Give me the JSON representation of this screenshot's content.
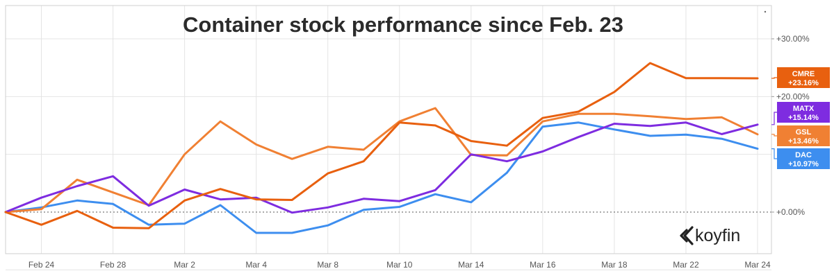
{
  "chart_data": {
    "type": "line",
    "title": "Container stock performance since Feb. 23",
    "brand": "koyfin",
    "x": [
      "Feb 23",
      "Feb 24",
      "Feb 25",
      "Feb 28",
      "Mar 1",
      "Mar 2",
      "Mar 3",
      "Mar 4",
      "Mar 7",
      "Mar 8",
      "Mar 9",
      "Mar 10",
      "Mar 11",
      "Mar 14",
      "Mar 15",
      "Mar 16",
      "Mar 17",
      "Mar 18",
      "Mar 21",
      "Mar 22",
      "Mar 23",
      "Mar 24"
    ],
    "x_tick_labels": [
      "Feb 24",
      "Feb 28",
      "Mar 2",
      "Mar 4",
      "Mar 8",
      "Mar 10",
      "Mar 14",
      "Mar 16",
      "Mar 18",
      "Mar 22",
      "Mar 24"
    ],
    "x_tick_index": [
      1,
      3,
      5,
      7,
      9,
      11,
      13,
      15,
      17,
      19,
      21
    ],
    "y_ticks": [
      {
        "value": 0,
        "label": "+0.00%"
      },
      {
        "value": 20,
        "label": "+20.00%"
      },
      {
        "value": 30,
        "label": "+30.00%"
      }
    ],
    "y_grid": [
      -10,
      0,
      10,
      20,
      30
    ],
    "ylim": [
      -12,
      34
    ],
    "grid": true,
    "legend": "right-edge value tags",
    "series": [
      {
        "name": "CMRE",
        "color": "#e8600f",
        "value_label": "+23.16%",
        "values": [
          0,
          -2.2,
          0.2,
          -2.7,
          -2.8,
          2.0,
          4.0,
          2.2,
          2.1,
          6.7,
          8.8,
          15.5,
          15.0,
          12.3,
          11.5,
          16.3,
          17.4,
          20.8,
          25.8,
          23.2,
          23.2,
          23.16
        ]
      },
      {
        "name": "MATX",
        "color": "#7e2ce0",
        "value_label": "+15.14%",
        "values": [
          0,
          2.5,
          4.5,
          6.2,
          1.1,
          3.9,
          2.2,
          2.5,
          -0.1,
          0.8,
          2.3,
          1.9,
          3.8,
          10.0,
          8.8,
          10.5,
          13.0,
          15.3,
          14.9,
          15.5,
          13.5,
          15.14
        ]
      },
      {
        "name": "GSL",
        "color": "#f08033",
        "value_label": "+13.46%",
        "values": [
          0,
          0.5,
          5.6,
          3.4,
          1.2,
          10.0,
          15.7,
          11.7,
          9.2,
          11.3,
          10.8,
          15.7,
          18.0,
          9.9,
          9.8,
          15.7,
          17.0,
          17.0,
          16.6,
          16.1,
          16.4,
          13.46
        ]
      },
      {
        "name": "DAC",
        "color": "#3d8eef",
        "value_label": "+10.97%",
        "values": [
          0,
          0.8,
          2.0,
          1.4,
          -2.2,
          -2.0,
          1.2,
          -3.6,
          -3.6,
          -2.3,
          0.4,
          0.9,
          3.1,
          1.7,
          6.8,
          14.8,
          15.5,
          14.3,
          13.2,
          13.4,
          12.7,
          10.97
        ]
      }
    ]
  }
}
